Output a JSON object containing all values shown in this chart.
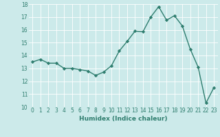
{
  "x": [
    0,
    1,
    2,
    3,
    4,
    5,
    6,
    7,
    8,
    9,
    10,
    11,
    12,
    13,
    14,
    15,
    16,
    17,
    18,
    19,
    20,
    21,
    22,
    23
  ],
  "y": [
    13.5,
    13.7,
    13.4,
    13.4,
    13.0,
    13.0,
    12.9,
    12.8,
    12.45,
    12.7,
    13.2,
    14.35,
    15.1,
    15.9,
    15.85,
    17.0,
    17.8,
    16.75,
    17.1,
    16.3,
    14.5,
    13.1,
    10.3,
    11.5
  ],
  "line_color": "#2e7d6e",
  "marker": "D",
  "marker_size": 2.2,
  "bg_color": "#cceaea",
  "grid_color": "#ffffff",
  "xlabel": "Humidex (Indice chaleur)",
  "ylim": [
    10,
    18
  ],
  "xlim_min": -0.5,
  "xlim_max": 23.5,
  "yticks": [
    10,
    11,
    12,
    13,
    14,
    15,
    16,
    17,
    18
  ],
  "xticks": [
    0,
    1,
    2,
    3,
    4,
    5,
    6,
    7,
    8,
    9,
    10,
    11,
    12,
    13,
    14,
    15,
    16,
    17,
    18,
    19,
    20,
    21,
    22,
    23
  ],
  "tick_fontsize": 5.5,
  "xlabel_fontsize": 6.5,
  "line_width": 1.0
}
